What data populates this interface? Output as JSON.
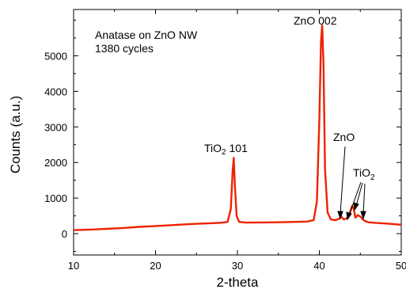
{
  "chart_data": {
    "type": "line",
    "title": "",
    "xlabel": "2-theta",
    "ylabel": "Counts (a.u.)",
    "xlim": [
      10,
      50
    ],
    "ylim": [
      -600,
      6300
    ],
    "xticks": [
      10,
      20,
      30,
      40,
      50
    ],
    "yticks": [
      0,
      1000,
      2000,
      3000,
      4000,
      5000
    ],
    "grid": false,
    "line_color": "#ee2200",
    "sample_label": [
      "Anatase on ZnO NW",
      "1380 cycles"
    ],
    "peak_labels": {
      "tio2_101": {
        "base": "TiO",
        "sub": "2",
        "suffix": " 101"
      },
      "zno_002": {
        "text": "ZnO 002"
      },
      "zno": {
        "text": "ZnO"
      },
      "tio2": {
        "base": "TiO",
        "sub": "2"
      }
    },
    "series": [
      {
        "x": [
          10,
          12,
          14,
          16,
          18,
          20,
          22,
          24,
          26,
          27,
          28,
          28.8,
          29.2,
          29.4,
          29.55,
          29.7,
          29.9,
          30.2,
          31,
          33,
          35,
          37,
          38.5,
          39.3,
          39.7,
          40.0,
          40.2,
          40.35,
          40.5,
          40.7,
          41.0,
          41.4,
          42.0,
          42.4,
          42.7,
          43.0,
          43.4,
          43.7,
          44.0,
          44.2,
          44.4,
          44.7,
          45.0,
          45.3,
          45.6,
          46.0,
          47,
          48,
          49,
          50
        ],
        "y": [
          100,
          115,
          135,
          160,
          190,
          215,
          240,
          265,
          285,
          295,
          305,
          330,
          700,
          1700,
          2130,
          1300,
          500,
          330,
          310,
          315,
          320,
          330,
          340,
          380,
          900,
          3200,
          5400,
          5850,
          4800,
          1800,
          600,
          400,
          380,
          420,
          470,
          400,
          440,
          560,
          780,
          700,
          450,
          520,
          480,
          400,
          350,
          320,
          300,
          285,
          270,
          250
        ]
      }
    ]
  }
}
